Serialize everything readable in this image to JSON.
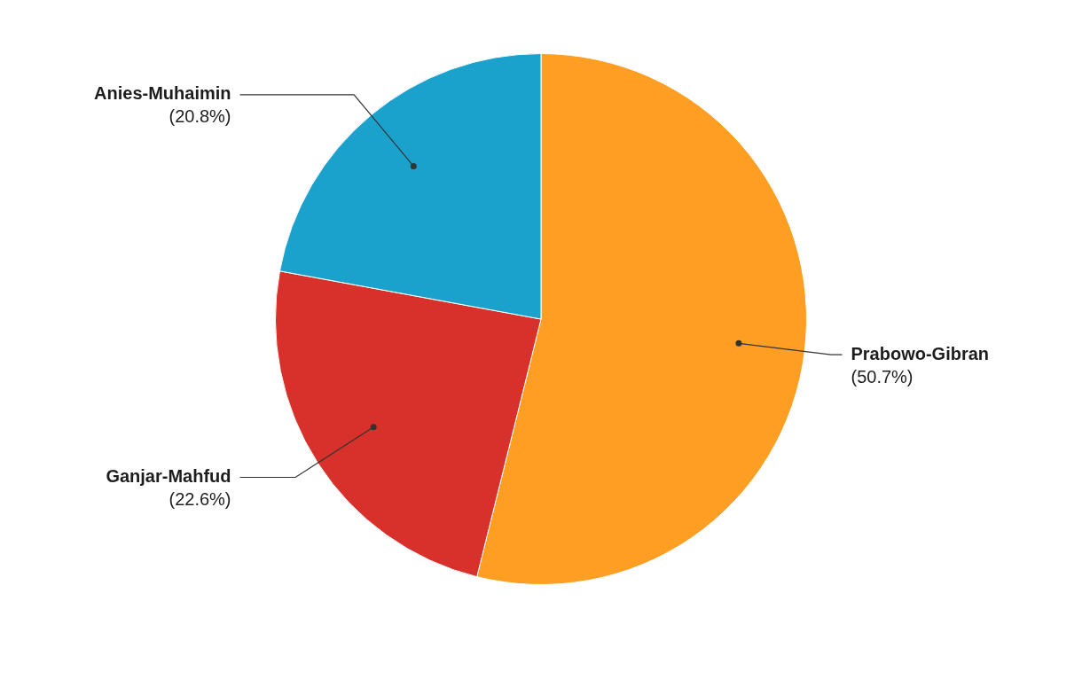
{
  "chart_data": {
    "type": "pie",
    "categories": [
      "Prabowo-Gibran",
      "Ganjar-Mahfud",
      "Anies-Muhaimin"
    ],
    "values": [
      50.7,
      22.6,
      20.8
    ],
    "value_labels": [
      "(50.7%)",
      "(22.6%)",
      "(20.8%)"
    ],
    "colors": [
      "#fe9f24",
      "#d8312b",
      "#1aa1cc"
    ],
    "legend": false
  }
}
